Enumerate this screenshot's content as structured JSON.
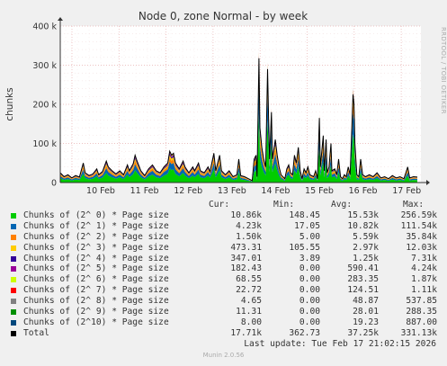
{
  "chart_data": {
    "type": "area",
    "title": "Node 0, zone Normal - by week",
    "ylabel": "chunks",
    "xlabel": "",
    "ylim": [
      0,
      400000
    ],
    "yticks": [
      {
        "value": 0,
        "label": "0"
      },
      {
        "value": 100000,
        "label": "100 k"
      },
      {
        "value": 200000,
        "label": "200 k"
      },
      {
        "value": 300000,
        "label": "300 k"
      },
      {
        "value": 400000,
        "label": "400 k"
      }
    ],
    "xticks": [
      "10 Feb",
      "11 Feb",
      "12 Feb",
      "13 Feb",
      "14 Feb",
      "15 Feb",
      "16 Feb",
      "17 Feb"
    ],
    "grid": true,
    "columns": {
      "cur": "Cur:",
      "min": "Min:",
      "avg": "Avg:",
      "max": "Max:"
    },
    "series": [
      {
        "name": "Chunks of (2^ 0) * Page size",
        "color": "#00cc00",
        "cur": "10.86k",
        "min": "148.45",
        "avg": "15.53k",
        "max": "256.59k"
      },
      {
        "name": "Chunks of (2^ 1) * Page size",
        "color": "#0066b3",
        "cur": "4.23k",
        "min": "17.05",
        "avg": "10.82k",
        "max": "111.54k"
      },
      {
        "name": "Chunks of (2^ 2) * Page size",
        "color": "#ff8000",
        "cur": "1.50k",
        "min": "5.00",
        "avg": "5.59k",
        "max": "35.84k"
      },
      {
        "name": "Chunks of (2^ 3) * Page size",
        "color": "#ffcc00",
        "cur": "473.31",
        "min": "105.55",
        "avg": "2.97k",
        "max": "12.03k"
      },
      {
        "name": "Chunks of (2^ 4) * Page size",
        "color": "#330099",
        "cur": "347.01",
        "min": "3.89",
        "avg": "1.25k",
        "max": "7.31k"
      },
      {
        "name": "Chunks of (2^ 5) * Page size",
        "color": "#990099",
        "cur": "182.43",
        "min": "0.00",
        "avg": "590.41",
        "max": "4.24k"
      },
      {
        "name": "Chunks of (2^ 6) * Page size",
        "color": "#ccff00",
        "cur": "68.55",
        "min": "0.00",
        "avg": "283.35",
        "max": "1.87k"
      },
      {
        "name": "Chunks of (2^ 7) * Page size",
        "color": "#ff0000",
        "cur": "22.72",
        "min": "0.00",
        "avg": "124.51",
        "max": "1.11k"
      },
      {
        "name": "Chunks of (2^ 8) * Page size",
        "color": "#808080",
        "cur": "4.65",
        "min": "0.00",
        "avg": "48.87",
        "max": "537.85"
      },
      {
        "name": "Chunks of (2^ 9) * Page size",
        "color": "#008f00",
        "cur": "11.31",
        "min": "0.00",
        "avg": "28.01",
        "max": "288.35"
      },
      {
        "name": "Chunks of (2^10) * Page size",
        "color": "#00487d",
        "cur": "8.00",
        "min": "0.00",
        "avg": "19.23",
        "max": "887.00"
      },
      {
        "name": "Total",
        "color": "#000000",
        "cur": "17.71k",
        "min": "362.73",
        "avg": "37.25k",
        "max": "331.13k"
      }
    ],
    "total_profile": [
      [
        0,
        25000
      ],
      [
        4,
        15000
      ],
      [
        8,
        20000
      ],
      [
        12,
        12000
      ],
      [
        16,
        18000
      ],
      [
        20,
        14000
      ],
      [
        24,
        50000
      ],
      [
        26,
        25000
      ],
      [
        30,
        18000
      ],
      [
        34,
        22000
      ],
      [
        38,
        35000
      ],
      [
        40,
        20000
      ],
      [
        44,
        28000
      ],
      [
        48,
        55000
      ],
      [
        50,
        40000
      ],
      [
        54,
        30000
      ],
      [
        58,
        22000
      ],
      [
        62,
        30000
      ],
      [
        66,
        20000
      ],
      [
        70,
        45000
      ],
      [
        72,
        30000
      ],
      [
        76,
        48000
      ],
      [
        78,
        70000
      ],
      [
        80,
        55000
      ],
      [
        84,
        30000
      ],
      [
        88,
        18000
      ],
      [
        92,
        35000
      ],
      [
        96,
        45000
      ],
      [
        100,
        30000
      ],
      [
        104,
        25000
      ],
      [
        108,
        40000
      ],
      [
        112,
        50000
      ],
      [
        114,
        80000
      ],
      [
        116,
        70000
      ],
      [
        118,
        75000
      ],
      [
        120,
        50000
      ],
      [
        124,
        35000
      ],
      [
        128,
        55000
      ],
      [
        130,
        40000
      ],
      [
        134,
        25000
      ],
      [
        138,
        40000
      ],
      [
        140,
        30000
      ],
      [
        144,
        50000
      ],
      [
        146,
        30000
      ],
      [
        150,
        25000
      ],
      [
        154,
        40000
      ],
      [
        156,
        28000
      ],
      [
        160,
        75000
      ],
      [
        162,
        30000
      ],
      [
        166,
        70000
      ],
      [
        168,
        30000
      ],
      [
        172,
        20000
      ],
      [
        176,
        30000
      ],
      [
        180,
        15000
      ],
      [
        184,
        20000
      ],
      [
        186,
        60000
      ],
      [
        188,
        18000
      ],
      [
        192,
        15000
      ],
      [
        196,
        10000
      ],
      [
        200,
        5000
      ],
      [
        202,
        60000
      ],
      [
        204,
        70000
      ],
      [
        205,
        15000
      ],
      [
        207,
        318000
      ],
      [
        208,
        140000
      ],
      [
        210,
        90000
      ],
      [
        212,
        60000
      ],
      [
        214,
        40000
      ],
      [
        216,
        290000
      ],
      [
        217,
        170000
      ],
      [
        218,
        60000
      ],
      [
        220,
        180000
      ],
      [
        221,
        60000
      ],
      [
        224,
        110000
      ],
      [
        226,
        70000
      ],
      [
        228,
        40000
      ],
      [
        230,
        20000
      ],
      [
        234,
        10000
      ],
      [
        236,
        35000
      ],
      [
        238,
        45000
      ],
      [
        240,
        25000
      ],
      [
        242,
        20000
      ],
      [
        244,
        70000
      ],
      [
        246,
        50000
      ],
      [
        248,
        90000
      ],
      [
        250,
        30000
      ],
      [
        252,
        10000
      ],
      [
        254,
        35000
      ],
      [
        256,
        25000
      ],
      [
        258,
        40000
      ],
      [
        260,
        20000
      ],
      [
        264,
        15000
      ],
      [
        266,
        30000
      ],
      [
        268,
        10000
      ],
      [
        270,
        165000
      ],
      [
        271,
        40000
      ],
      [
        274,
        120000
      ],
      [
        275,
        30000
      ],
      [
        277,
        110000
      ],
      [
        278,
        25000
      ],
      [
        280,
        40000
      ],
      [
        282,
        100000
      ],
      [
        283,
        30000
      ],
      [
        286,
        35000
      ],
      [
        288,
        20000
      ],
      [
        290,
        60000
      ],
      [
        292,
        15000
      ],
      [
        294,
        10000
      ],
      [
        296,
        20000
      ],
      [
        298,
        15000
      ],
      [
        300,
        40000
      ],
      [
        302,
        20000
      ],
      [
        305,
        225000
      ],
      [
        306,
        200000
      ],
      [
        307,
        100000
      ],
      [
        309,
        20000
      ],
      [
        311,
        15000
      ],
      [
        313,
        60000
      ],
      [
        315,
        20000
      ],
      [
        318,
        15000
      ],
      [
        322,
        20000
      ],
      [
        326,
        15000
      ],
      [
        330,
        25000
      ],
      [
        334,
        12000
      ],
      [
        338,
        15000
      ],
      [
        342,
        10000
      ],
      [
        346,
        18000
      ],
      [
        350,
        12000
      ],
      [
        354,
        15000
      ],
      [
        358,
        10000
      ],
      [
        362,
        40000
      ],
      [
        364,
        12000
      ],
      [
        368,
        15000
      ],
      [
        372,
        14000
      ]
    ]
  },
  "legend_title": "",
  "side_text": "RRDTOOL / TOBI OETIKER",
  "footer": {
    "last_update": "Last update: Tue Feb 17 21:02:15 2026",
    "version": "Munin 2.0.56"
  }
}
